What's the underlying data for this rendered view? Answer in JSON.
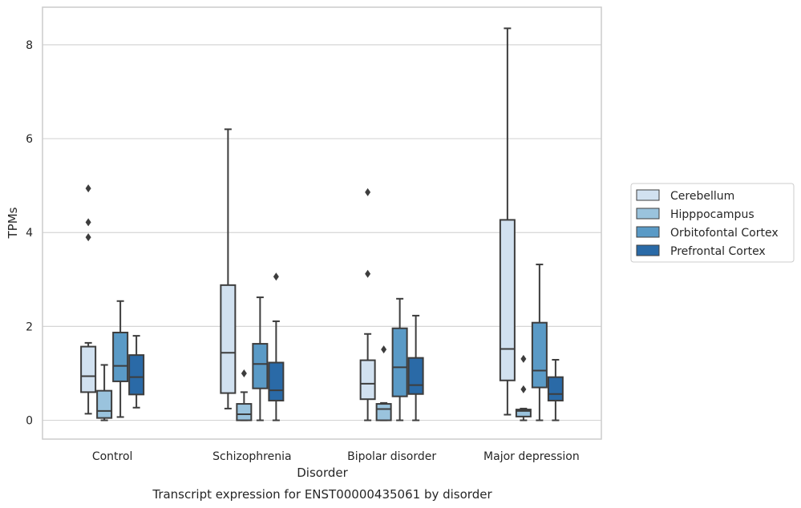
{
  "chart_data": {
    "type": "boxplot",
    "caption": "Transcript expression for ENST00000435061 by disorder",
    "xlabel": "Disorder",
    "ylabel": "TPMs",
    "ylim": [
      -0.4,
      8.8
    ],
    "yticks": [
      0,
      2,
      4,
      6,
      8
    ],
    "grid": "horizontal",
    "legend_position": "right",
    "categories": [
      "Control",
      "Schizophrenia",
      "Bipolar disorder",
      "Major depression"
    ],
    "series": [
      {
        "name": "Cerebellum",
        "color": "#d1e1f0",
        "boxes": [
          {
            "whislo": 0.14,
            "q1": 0.6,
            "med": 0.94,
            "q3": 1.57,
            "whishi": 1.65,
            "fliers": [
              3.9,
              4.22,
              4.94
            ]
          },
          {
            "whislo": 0.25,
            "q1": 0.58,
            "med": 1.44,
            "q3": 2.88,
            "whishi": 6.2,
            "fliers": []
          },
          {
            "whislo": 0.0,
            "q1": 0.45,
            "med": 0.78,
            "q3": 1.28,
            "whishi": 1.84,
            "fliers": [
              3.12,
              4.86
            ]
          },
          {
            "whislo": 0.12,
            "q1": 0.85,
            "med": 1.52,
            "q3": 4.27,
            "whishi": 8.35,
            "fliers": []
          }
        ]
      },
      {
        "name": "Hipppocampus",
        "color": "#9ac3dd",
        "boxes": [
          {
            "whislo": 0.0,
            "q1": 0.05,
            "med": 0.2,
            "q3": 0.63,
            "whishi": 1.18,
            "fliers": []
          },
          {
            "whislo": 0.0,
            "q1": 0.0,
            "med": 0.13,
            "q3": 0.35,
            "whishi": 0.6,
            "fliers": [
              1.0
            ]
          },
          {
            "whislo": 0.0,
            "q1": 0.0,
            "med": 0.24,
            "q3": 0.35,
            "whishi": 0.37,
            "fliers": [
              1.51
            ]
          },
          {
            "whislo": 0.0,
            "q1": 0.08,
            "med": 0.2,
            "q3": 0.23,
            "whishi": 0.25,
            "fliers": [
              0.66,
              1.31
            ]
          }
        ]
      },
      {
        "name": "Orbitofontal Cortex",
        "color": "#5a9ac6",
        "boxes": [
          {
            "whislo": 0.07,
            "q1": 0.83,
            "med": 1.16,
            "q3": 1.87,
            "whishi": 2.54,
            "fliers": []
          },
          {
            "whislo": 0.0,
            "q1": 0.68,
            "med": 1.2,
            "q3": 1.63,
            "whishi": 2.62,
            "fliers": []
          },
          {
            "whislo": 0.0,
            "q1": 0.51,
            "med": 1.13,
            "q3": 1.96,
            "whishi": 2.59,
            "fliers": []
          },
          {
            "whislo": 0.0,
            "q1": 0.7,
            "med": 1.06,
            "q3": 2.08,
            "whishi": 3.32,
            "fliers": []
          }
        ]
      },
      {
        "name": "Prefrontal Cortex",
        "color": "#2a6aa7",
        "boxes": [
          {
            "whislo": 0.27,
            "q1": 0.55,
            "med": 0.92,
            "q3": 1.39,
            "whishi": 1.8,
            "fliers": []
          },
          {
            "whislo": 0.0,
            "q1": 0.42,
            "med": 0.64,
            "q3": 1.23,
            "whishi": 2.11,
            "fliers": [
              3.06
            ]
          },
          {
            "whislo": 0.0,
            "q1": 0.56,
            "med": 0.75,
            "q3": 1.33,
            "whishi": 2.23,
            "fliers": []
          },
          {
            "whislo": 0.0,
            "q1": 0.42,
            "med": 0.56,
            "q3": 0.92,
            "whishi": 1.29,
            "fliers": []
          }
        ]
      }
    ]
  }
}
